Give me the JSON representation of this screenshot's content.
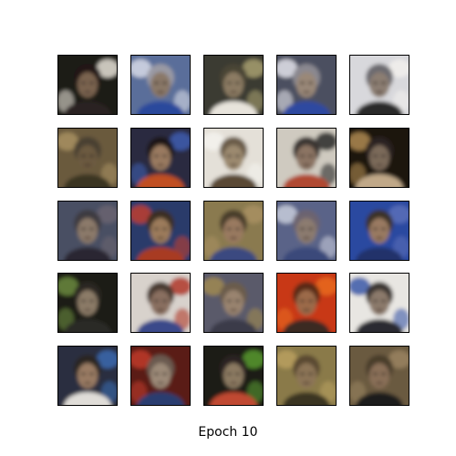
{
  "figure": {
    "caption": "Epoch 10",
    "grid": {
      "rows": 5,
      "cols": 5
    },
    "samples": [
      {
        "name": "sample-r1-c1",
        "bg": "#1c1a14",
        "accent": "#e8e4d8",
        "face": "#7a6450",
        "hair": "#201812",
        "shirt": "#2a2420"
      },
      {
        "name": "sample-r1-c2",
        "bg": "#5a6e9a",
        "accent": "#d8dce8",
        "face": "#8a7868",
        "hair": "#9a9aa4",
        "shirt": "#2c4a9c"
      },
      {
        "name": "sample-r1-c3",
        "bg": "#3a3a30",
        "accent": "#a8a070",
        "face": "#8c7c64",
        "hair": "#4a4434",
        "shirt": "#e8e4dc"
      },
      {
        "name": "sample-r1-c4",
        "bg": "#4c5060",
        "accent": "#e4e4ec",
        "face": "#9a8878",
        "hair": "#8a8890",
        "shirt": "#2e4aa0"
      },
      {
        "name": "sample-r1-c5",
        "bg": "#d8d8dc",
        "accent": "#f2f0ec",
        "face": "#8c7e72",
        "hair": "#6c6a70",
        "shirt": "#2a2a2a"
      },
      {
        "name": "sample-r2-c1",
        "bg": "#6a5a3c",
        "accent": "#a89060",
        "face": "#6c5a40",
        "hair": "#4a4030",
        "shirt": "#3a3424"
      },
      {
        "name": "sample-r2-c2",
        "bg": "#2a2c40",
        "accent": "#3e5cb0",
        "face": "#9a7a60",
        "hair": "#1a1612",
        "shirt": "#c05020"
      },
      {
        "name": "sample-r2-c3",
        "bg": "#e4e0d8",
        "accent": "#f4f2ee",
        "face": "#9c8a70",
        "hair": "#6a5c48",
        "shirt": "#5a4a36"
      },
      {
        "name": "sample-r2-c4",
        "bg": "#cfcac0",
        "accent": "#2a2a2a",
        "face": "#8c7464",
        "hair": "#3a3430",
        "shirt": "#b04830"
      },
      {
        "name": "sample-r2-c5",
        "bg": "#1a1410",
        "accent": "#b08a50",
        "face": "#7c6a5a",
        "hair": "#2a2420",
        "shirt": "#c0a888"
      },
      {
        "name": "sample-r3-c1",
        "bg": "#4a5064",
        "accent": "#6a6470",
        "face": "#8c7a6a",
        "hair": "#3e3a40",
        "shirt": "#2a2830"
      },
      {
        "name": "sample-r3-c2",
        "bg": "#2c3a6a",
        "accent": "#c04030",
        "face": "#9c7c5c",
        "hair": "#3a2e24",
        "shirt": "#a83a20"
      },
      {
        "name": "sample-r3-c3",
        "bg": "#8a7a50",
        "accent": "#a89060",
        "face": "#9a7a60",
        "hair": "#4a3c2c",
        "shirt": "#3a4a80"
      },
      {
        "name": "sample-r3-c4",
        "bg": "#5a6488",
        "accent": "#c8ccdc",
        "face": "#8c7c70",
        "hair": "#6c6470",
        "shirt": "#3a4a7a"
      },
      {
        "name": "sample-r3-c5",
        "bg": "#2a48a0",
        "accent": "#5a70b8",
        "face": "#9a7a62",
        "hair": "#3a3028",
        "shirt": "#20306a"
      },
      {
        "name": "sample-r4-c1",
        "bg": "#1a1c14",
        "accent": "#6c8a40",
        "face": "#8c7c68",
        "hair": "#2a2820",
        "shirt": "#2c2a28"
      },
      {
        "name": "sample-r4-c2",
        "bg": "#d8d2cc",
        "accent": "#b03a2a",
        "face": "#8a7060",
        "hair": "#4a3a32",
        "shirt": "#3a4a8a"
      },
      {
        "name": "sample-r4-c3",
        "bg": "#5a5a6a",
        "accent": "#a08a50",
        "face": "#9a8470",
        "hair": "#6a5c4c",
        "shirt": "#3a3a4a"
      },
      {
        "name": "sample-r4-c4",
        "bg": "#c83818",
        "accent": "#e86a20",
        "face": "#9c6a48",
        "hair": "#5a2a18",
        "shirt": "#3a2a24"
      },
      {
        "name": "sample-r4-c5",
        "bg": "#e8e6e2",
        "accent": "#3a58a8",
        "face": "#8c7a6c",
        "hair": "#3a3430",
        "shirt": "#2a2a30"
      },
      {
        "name": "sample-r5-c1",
        "bg": "#2a2e40",
        "accent": "#3a6ab0",
        "face": "#9a7c64",
        "hair": "#2c2620",
        "shirt": "#e0ddd8"
      },
      {
        "name": "sample-r5-c2",
        "bg": "#5a1c14",
        "accent": "#c03a2a",
        "face": "#9c8a78",
        "hair": "#6a5a50",
        "shirt": "#2c3c70"
      },
      {
        "name": "sample-r5-c3",
        "bg": "#1a1e18",
        "accent": "#5a9a30",
        "face": "#8c7a62",
        "hair": "#2a2420",
        "shirt": "#c04a30"
      },
      {
        "name": "sample-r5-c4",
        "bg": "#8a7a48",
        "accent": "#b8a060",
        "face": "#8c7456",
        "hair": "#5a4a30",
        "shirt": "#3a3420"
      },
      {
        "name": "sample-r5-c5",
        "bg": "#6a5a40",
        "accent": "#9a8460",
        "face": "#8a7058",
        "hair": "#4a3c2c",
        "shirt": "#1a1a1e"
      }
    ]
  }
}
